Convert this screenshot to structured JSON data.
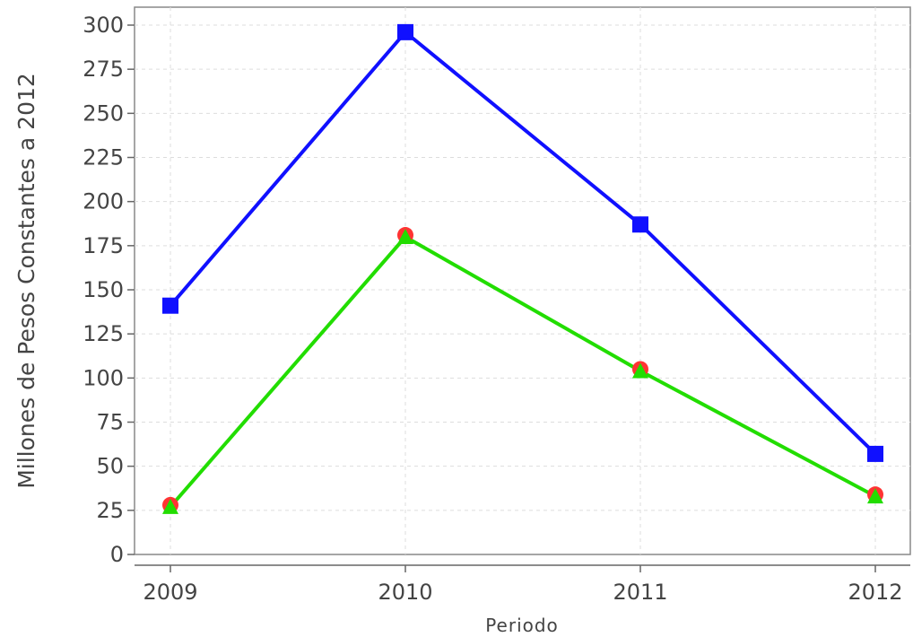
{
  "chart_data": {
    "type": "line",
    "xlabel": "Periodo",
    "ylabel": "Millones de Pesos Constantes a 2012",
    "categories": [
      "2009",
      "2010",
      "2011",
      "2012"
    ],
    "ylim": [
      0,
      300
    ],
    "yticks": [
      0,
      25,
      50,
      75,
      100,
      125,
      150,
      175,
      200,
      225,
      250,
      275,
      300
    ],
    "grid": true,
    "legend": "none",
    "series": [
      {
        "values": [
          141,
          296,
          187,
          57
        ],
        "color": "#1010ff",
        "marker": "square"
      },
      {
        "values": [
          28,
          181,
          105,
          34
        ],
        "color": "#ff3333",
        "marker": "circle"
      },
      {
        "values": [
          27,
          180,
          104,
          33
        ],
        "color": "#22dd00",
        "marker": "triangle"
      }
    ]
  }
}
